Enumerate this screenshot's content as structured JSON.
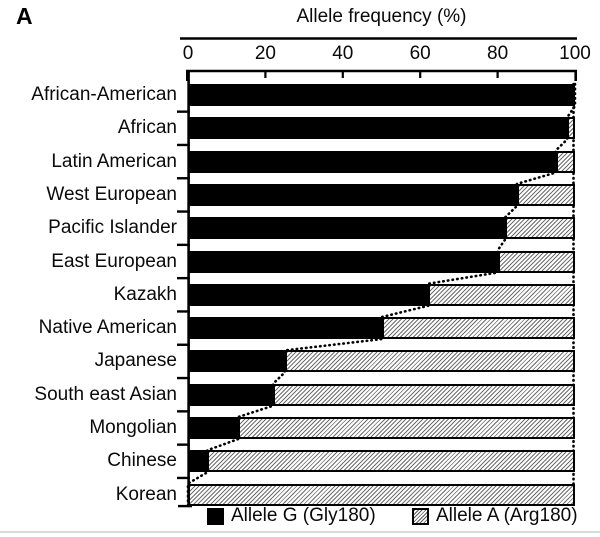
{
  "panel_label": "A",
  "chart_data": {
    "type": "bar",
    "orientation": "horizontal",
    "stacked": true,
    "title": "Allele frequency (%)",
    "categories": [
      "African-American",
      "African",
      "Latin American",
      "West European",
      "Pacific Islander",
      "East European",
      "Kazakh",
      "Native American",
      "Japanese",
      "South east Asian",
      "Mongolian",
      "Chinese",
      "Korean"
    ],
    "series": [
      {
        "name": "Allele G (Gly180)",
        "style": "solid-black",
        "values": [
          100,
          98,
          95,
          85,
          82,
          80,
          62,
          50,
          25,
          22,
          13,
          5,
          0
        ]
      },
      {
        "name": "Allele A (Arg180)",
        "style": "hatched",
        "values": [
          0,
          2,
          5,
          15,
          18,
          20,
          38,
          50,
          75,
          78,
          87,
          95,
          100
        ]
      }
    ],
    "x_axis": {
      "label": "Allele frequency (%)",
      "position": "top",
      "ticks": [
        0,
        20,
        40,
        60,
        80,
        100
      ],
      "range": [
        0,
        100
      ]
    },
    "legend": {
      "position": "bottom",
      "entries": [
        "Allele G (Gly180)",
        "Allele A (Arg180)"
      ]
    },
    "annotations": [
      "dotted staircase line along boundary between Allele G and Allele A segments",
      "dotted vertical reference line at 100%"
    ],
    "grid": false,
    "colors": {
      "allele_g": "#000000",
      "hatch_line": "#6e6e6e",
      "hatch_bg": "#ffffff",
      "axis": "#000000",
      "text": "#0a0a0a",
      "bottom_border": "#d7dbdf"
    }
  }
}
